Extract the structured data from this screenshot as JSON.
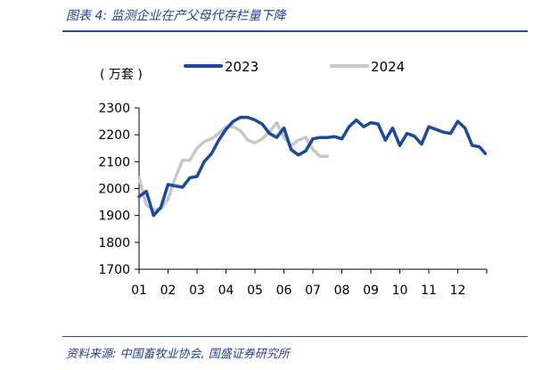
{
  "header": {
    "title": "图表 4: 监测企业在产父母代存栏量下降"
  },
  "footer": {
    "source": "资料来源: 中国畜牧业协会, 国盛证券研究所"
  },
  "chart_data": {
    "type": "line",
    "unit_label": "( 万套 )",
    "categories": [
      "01",
      "02",
      "03",
      "04",
      "05",
      "06",
      "07",
      "08",
      "09",
      "10",
      "11",
      "12"
    ],
    "ylim": [
      1700,
      2300
    ],
    "yticks": [
      1700,
      1800,
      1900,
      2000,
      2100,
      2200,
      2300
    ],
    "grid": false,
    "legend_position": "top",
    "x_range": [
      1,
      13
    ],
    "series": [
      {
        "name": "2023",
        "color": "#1b4a9c",
        "x": [
          1.0,
          1.25,
          1.5,
          1.75,
          2.0,
          2.25,
          2.5,
          2.75,
          3.0,
          3.25,
          3.5,
          3.75,
          4.0,
          4.25,
          4.5,
          4.75,
          5.0,
          5.25,
          5.5,
          5.75,
          6.0,
          6.25,
          6.5,
          6.75,
          7.0,
          7.25,
          7.5,
          7.75,
          8.0,
          8.25,
          8.5,
          8.75,
          9.0,
          9.25,
          9.5,
          9.75,
          10.0,
          10.25,
          10.5,
          10.75,
          11.0,
          11.25,
          11.5,
          11.75,
          12.0,
          12.25,
          12.5,
          12.75,
          12.95
        ],
        "values": [
          1970,
          1990,
          1900,
          1930,
          2015,
          2010,
          2005,
          2040,
          2045,
          2100,
          2130,
          2180,
          2220,
          2250,
          2265,
          2265,
          2255,
          2240,
          2205,
          2190,
          2225,
          2145,
          2125,
          2140,
          2185,
          2190,
          2190,
          2193,
          2185,
          2230,
          2255,
          2230,
          2245,
          2240,
          2180,
          2225,
          2160,
          2205,
          2195,
          2165,
          2230,
          2220,
          2210,
          2205,
          2250,
          2225,
          2160,
          2155,
          2130
        ]
      },
      {
        "name": "2024",
        "color": "#c8c8c8",
        "x": [
          1.0,
          1.25,
          1.5,
          1.75,
          2.0,
          2.25,
          2.5,
          2.75,
          3.0,
          3.25,
          3.5,
          3.75,
          4.0,
          4.25,
          4.5,
          4.75,
          5.0,
          5.25,
          5.5,
          5.75,
          6.0,
          6.25,
          6.5,
          6.75,
          7.0,
          7.25,
          7.5
        ],
        "values": [
          2040,
          1940,
          1920,
          1925,
          1960,
          2040,
          2105,
          2105,
          2150,
          2175,
          2185,
          2205,
          2230,
          2230,
          2215,
          2180,
          2170,
          2185,
          2210,
          2245,
          2190,
          2160,
          2180,
          2190,
          2145,
          2120,
          2120
        ]
      }
    ]
  }
}
